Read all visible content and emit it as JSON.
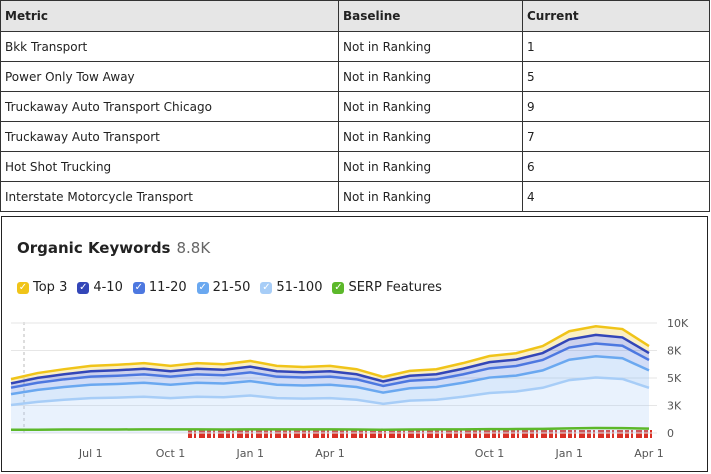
{
  "table": {
    "header": [
      "Metric",
      "Baseline",
      "Current"
    ],
    "rows": [
      [
        "Bkk Transport",
        "Not in Ranking",
        1
      ],
      [
        "Power Only Tow Away",
        "Not in Ranking",
        5
      ],
      [
        "Truckaway Auto Transport Chicago",
        "Not in Ranking",
        9
      ],
      [
        "Truckaway Auto Transport",
        "Not in Ranking",
        7
      ],
      [
        "Hot Shot Trucking",
        "Not in Ranking",
        6
      ],
      [
        "Interstate Motorcycle Transport",
        "Not in Ranking",
        4
      ]
    ]
  },
  "chart_data": {
    "type": "area",
    "title": "Organic Keywords",
    "subtitle": "8.8K",
    "categories": [
      null,
      null,
      null,
      "Jul 1",
      null,
      null,
      "Oct 1",
      null,
      null,
      "Jan 1",
      null,
      null,
      "Apr 1",
      null,
      null,
      null,
      null,
      null,
      "Oct 1",
      null,
      null,
      "Jan 1",
      null,
      null,
      "Apr 1"
    ],
    "stacked": true,
    "series": [
      {
        "name": "51-100",
        "color": "#a7cdf7",
        "values": [
          2550,
          2830,
          3020,
          3170,
          3220,
          3300,
          3170,
          3300,
          3250,
          3410,
          3170,
          3120,
          3170,
          3020,
          2650,
          2940,
          3020,
          3300,
          3640,
          3770,
          4110,
          4810,
          5040,
          4910,
          4110
        ]
      },
      {
        "name": "21-50",
        "color": "#6aa8f0",
        "values": [
          980,
          1090,
          1160,
          1220,
          1240,
          1270,
          1220,
          1270,
          1250,
          1310,
          1220,
          1200,
          1220,
          1160,
          1020,
          1130,
          1160,
          1270,
          1400,
          1450,
          1580,
          1850,
          1940,
          1890,
          1580
        ]
      },
      {
        "name": "11-20",
        "color": "#4d78e0",
        "values": [
          590,
          650,
          700,
          730,
          740,
          760,
          730,
          760,
          750,
          790,
          730,
          720,
          730,
          700,
          610,
          680,
          700,
          760,
          840,
          870,
          950,
          1110,
          1160,
          1130,
          950
        ]
      },
      {
        "name": "4-10",
        "color": "#3346b8",
        "values": [
          390,
          440,
          460,
          490,
          500,
          510,
          490,
          510,
          500,
          520,
          490,
          480,
          490,
          460,
          410,
          450,
          460,
          510,
          560,
          580,
          630,
          740,
          780,
          760,
          630
        ]
      },
      {
        "name": "Top 3",
        "color": "#f0c419",
        "values": [
          390,
          440,
          460,
          490,
          500,
          510,
          490,
          510,
          500,
          520,
          490,
          480,
          490,
          460,
          410,
          450,
          460,
          510,
          560,
          580,
          630,
          740,
          780,
          760,
          630
        ]
      },
      {
        "name": "SERP Features",
        "color": "#5cb82a",
        "type": "line",
        "values": [
          300,
          300,
          320,
          320,
          320,
          330,
          330,
          330,
          320,
          330,
          330,
          330,
          330,
          320,
          300,
          320,
          330,
          330,
          350,
          360,
          380,
          420,
          450,
          440,
          400
        ]
      }
    ],
    "legend_order": [
      4,
      3,
      2,
      1,
      0,
      5
    ],
    "ylim": [
      0,
      10000
    ],
    "yticks": [
      0,
      {
        "value": 2500,
        "label": "3K"
      },
      {
        "value": 5000,
        "label": "5K"
      },
      {
        "value": 7500,
        "label": "8K"
      },
      {
        "value": 10000,
        "label": "10K"
      }
    ],
    "grid": true
  }
}
